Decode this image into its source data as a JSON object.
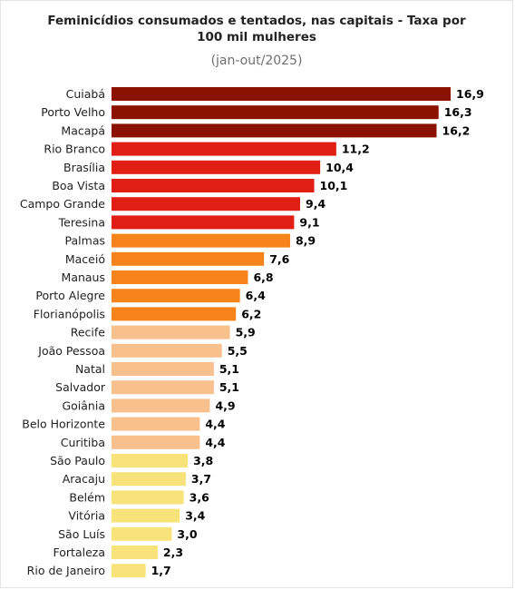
{
  "chart_data": {
    "type": "bar",
    "orientation": "horizontal",
    "title": "Feminicídios consumados e tentados, nas capitais - Taxa por 100 mil mulheres",
    "subtitle": "(jan-out/2025)",
    "xlabel": "",
    "ylabel": "",
    "xlim": [
      0,
      16.9
    ],
    "grid": false,
    "legend": "none",
    "categories": [
      "Cuiabá",
      "Porto Velho",
      "Macapá",
      "Rio Branco",
      "Brasília",
      "Boa Vista",
      "Campo Grande",
      "Teresina",
      "Palmas",
      "Maceió",
      "Manaus",
      "Porto Alegre",
      "Florianópolis",
      "Recife",
      "João Pessoa",
      "Natal",
      "Salvador",
      "Goiânia",
      "Belo Horizonte",
      "Curitiba",
      "São Paulo",
      "Aracaju",
      "Belém",
      "Vitória",
      "São Luís",
      "Fortaleza",
      "Rio de Janeiro"
    ],
    "values": [
      16.9,
      16.3,
      16.2,
      11.2,
      10.4,
      10.1,
      9.4,
      9.1,
      8.9,
      7.6,
      6.8,
      6.4,
      6.2,
      5.9,
      5.5,
      5.1,
      5.1,
      4.9,
      4.4,
      4.4,
      3.8,
      3.7,
      3.6,
      3.4,
      3.0,
      2.3,
      1.7
    ],
    "value_labels": [
      "16,9",
      "16,3",
      "16,2",
      "11,2",
      "10,4",
      "10,1",
      "9,4",
      "9,1",
      "8,9",
      "7,6",
      "6,8",
      "6,4",
      "6,2",
      "5,9",
      "5,5",
      "5,1",
      "5,1",
      "4,9",
      "4,4",
      "4,4",
      "3,8",
      "3,7",
      "3,6",
      "3,4",
      "3,0",
      "2,3",
      "1,7"
    ],
    "colors": [
      "#8b1200",
      "#8b1200",
      "#8b1200",
      "#e01e14",
      "#e01e14",
      "#e01e14",
      "#e01e14",
      "#e01e14",
      "#f7841a",
      "#f7841a",
      "#f7841a",
      "#f7841a",
      "#f7841a",
      "#f7c08c",
      "#f7c08c",
      "#f7c08c",
      "#f7c08c",
      "#f7c08c",
      "#f7c08c",
      "#f7c08c",
      "#f8e27a",
      "#f8e27a",
      "#f8e27a",
      "#f8e27a",
      "#f8e27a",
      "#f8e27a",
      "#f8e27a"
    ]
  }
}
